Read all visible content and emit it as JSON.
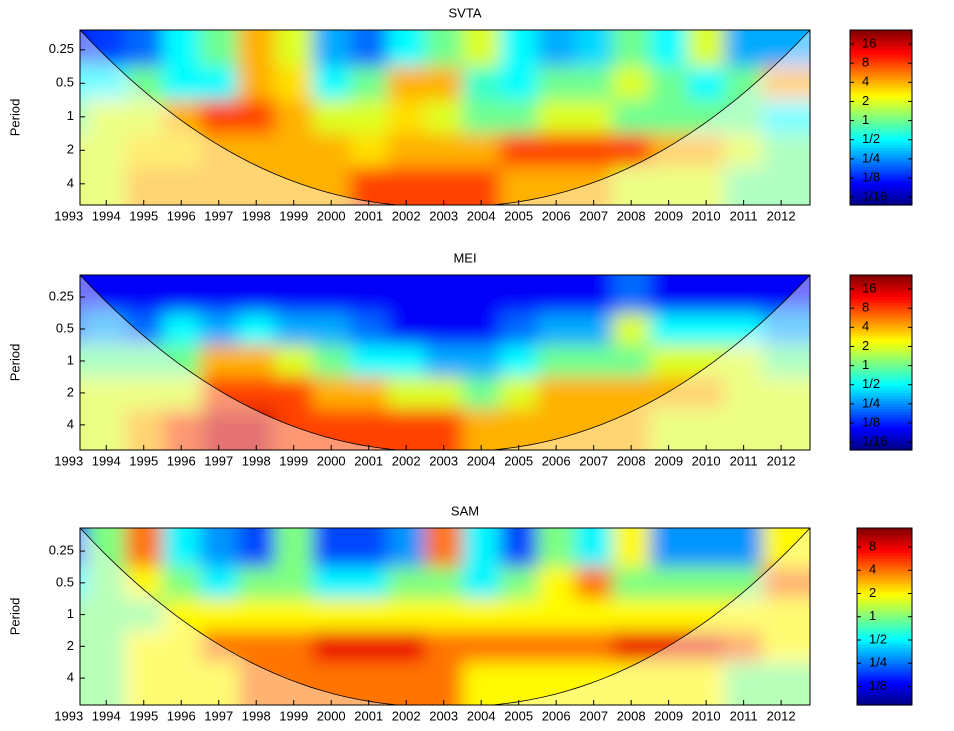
{
  "chart_data": [
    {
      "type": "heatmap",
      "title": "SVTA",
      "ylabel": "Period",
      "xticks": [
        1993,
        1994,
        1995,
        1996,
        1997,
        1998,
        1999,
        2000,
        2001,
        2002,
        2003,
        2004,
        2005,
        2006,
        2007,
        2008,
        2009,
        2010,
        2011,
        2012
      ],
      "xlim": [
        1993.3,
        2012.77
      ],
      "yticks": [
        0.25,
        0.5,
        1,
        2,
        4
      ],
      "ylim": [
        0.166,
        6.2
      ],
      "ylog": true,
      "yreverse": true,
      "z": [
        [
          0.1,
          0.15,
          0.2,
          0.5,
          1,
          4,
          2,
          0.3,
          0.2,
          0.5,
          1,
          2,
          0.5,
          0.3,
          0.4,
          1,
          0.5,
          2,
          0.3,
          0.3
        ],
        [
          0.5,
          0.5,
          1,
          0.5,
          0.5,
          4,
          3,
          0.5,
          1,
          4,
          4,
          0.7,
          0.5,
          1,
          1,
          2,
          1,
          0.5,
          1,
          4
        ],
        [
          1,
          2,
          2,
          4,
          8,
          8,
          4,
          2,
          2,
          3,
          2,
          1,
          1,
          2,
          2,
          1,
          1,
          1,
          1,
          0.5
        ],
        [
          2,
          2,
          3,
          3,
          4,
          4,
          4,
          4,
          3,
          4,
          4,
          4,
          8,
          8,
          8,
          8,
          4,
          4,
          2,
          1
        ],
        [
          2,
          2,
          4,
          4,
          4,
          4,
          4,
          4,
          8,
          8,
          8,
          8,
          4,
          4,
          4,
          2,
          2,
          2,
          1,
          1
        ]
      ],
      "clim": [
        0.047,
        26.6
      ],
      "cticks": [
        {
          "value": 16,
          "label": "16"
        },
        {
          "value": 8,
          "label": "8"
        },
        {
          "value": 4,
          "label": "4"
        },
        {
          "value": 2,
          "label": "2"
        },
        {
          "value": 1,
          "label": "1"
        },
        {
          "value": 0.5,
          "label": "1/2"
        },
        {
          "value": 0.25,
          "label": "1/4"
        },
        {
          "value": 0.125,
          "label": "1/8"
        },
        {
          "value": 0.0625,
          "label": "1/16"
        }
      ]
    },
    {
      "type": "heatmap",
      "title": "MEI",
      "ylabel": "Period",
      "xticks": [
        1993,
        1994,
        1995,
        1996,
        1997,
        1998,
        1999,
        2000,
        2001,
        2002,
        2003,
        2004,
        2005,
        2006,
        2007,
        2008,
        2009,
        2010,
        2011,
        2012
      ],
      "xlim": [
        1993.3,
        2012.77
      ],
      "yticks": [
        0.25,
        0.5,
        1,
        2,
        4
      ],
      "ylim": [
        0.155,
        6.9
      ],
      "ylog": true,
      "yreverse": true,
      "z": [
        [
          0.1,
          0.1,
          0.1,
          0.1,
          0.1,
          0.1,
          0.1,
          0.1,
          0.1,
          0.1,
          0.1,
          0.1,
          0.1,
          0.1,
          0.1,
          0.2,
          0.1,
          0.1,
          0.1,
          0.1
        ],
        [
          0.2,
          0.3,
          0.2,
          0.5,
          0.3,
          0.5,
          0.3,
          0.3,
          0.2,
          0.1,
          0.1,
          0.1,
          0.2,
          0.3,
          0.3,
          2,
          0.5,
          0.5,
          0.5,
          0.3
        ],
        [
          1,
          1,
          1,
          1,
          4,
          4,
          2,
          1,
          0.5,
          0.5,
          0.3,
          0.3,
          0.5,
          1,
          1,
          1,
          2,
          2,
          2,
          1
        ],
        [
          2,
          2,
          2,
          2,
          8,
          8,
          8,
          4,
          4,
          2,
          2,
          1,
          2,
          4,
          4,
          4,
          4,
          4,
          2,
          2
        ],
        [
          2,
          2,
          4,
          8,
          16,
          16,
          8,
          8,
          8,
          8,
          8,
          4,
          4,
          4,
          4,
          4,
          2,
          2,
          2,
          2
        ]
      ],
      "clim": [
        0.047,
        26.6
      ],
      "cticks": [
        {
          "value": 16,
          "label": "16"
        },
        {
          "value": 8,
          "label": "8"
        },
        {
          "value": 4,
          "label": "4"
        },
        {
          "value": 2,
          "label": "2"
        },
        {
          "value": 1,
          "label": "1"
        },
        {
          "value": 0.5,
          "label": "1/2"
        },
        {
          "value": 0.25,
          "label": "1/4"
        },
        {
          "value": 0.125,
          "label": "1/8"
        },
        {
          "value": 0.0625,
          "label": "1/16"
        }
      ]
    },
    {
      "type": "heatmap",
      "title": "SAM",
      "ylabel": "Period",
      "xticks": [
        1993,
        1994,
        1995,
        1996,
        1997,
        1998,
        1999,
        2000,
        2001,
        2002,
        2003,
        2004,
        2005,
        2006,
        2007,
        2008,
        2009,
        2010,
        2011,
        2012
      ],
      "xlim": [
        1993.3,
        2012.77
      ],
      "yticks": [
        0.25,
        0.5,
        1,
        2,
        4
      ],
      "ylim": [
        0.151,
        7.2
      ],
      "ylog": true,
      "yreverse": true,
      "z": [
        [
          0.2,
          1,
          4,
          0.5,
          0.3,
          0.2,
          1,
          0.2,
          0.2,
          0.3,
          4,
          0.5,
          0.2,
          1,
          0.5,
          2,
          0.3,
          0.3,
          0.3,
          2
        ],
        [
          0.5,
          1,
          2,
          1,
          0.5,
          1,
          1,
          0.5,
          0.5,
          1,
          1,
          0.5,
          1,
          2,
          4,
          1,
          1,
          1,
          1,
          4
        ],
        [
          1,
          1,
          1,
          2,
          2,
          2,
          2,
          2,
          2,
          2,
          2,
          2,
          2,
          2,
          2,
          2,
          2,
          2,
          2,
          2
        ],
        [
          1,
          1,
          2,
          2,
          4,
          4,
          4,
          8,
          8,
          8,
          4,
          4,
          4,
          4,
          4,
          8,
          8,
          8,
          4,
          2
        ],
        [
          1,
          1,
          2,
          2,
          2,
          4,
          4,
          4,
          4,
          4,
          4,
          2,
          2,
          2,
          2,
          2,
          2,
          2,
          1,
          1
        ]
      ],
      "clim": [
        0.072,
        14.1
      ],
      "cticks": [
        {
          "value": 8,
          "label": "8"
        },
        {
          "value": 4,
          "label": "4"
        },
        {
          "value": 2,
          "label": "2"
        },
        {
          "value": 1,
          "label": "1"
        },
        {
          "value": 0.5,
          "label": "1/2"
        },
        {
          "value": 0.25,
          "label": "1/4"
        },
        {
          "value": 0.125,
          "label": "1/8"
        }
      ]
    }
  ]
}
